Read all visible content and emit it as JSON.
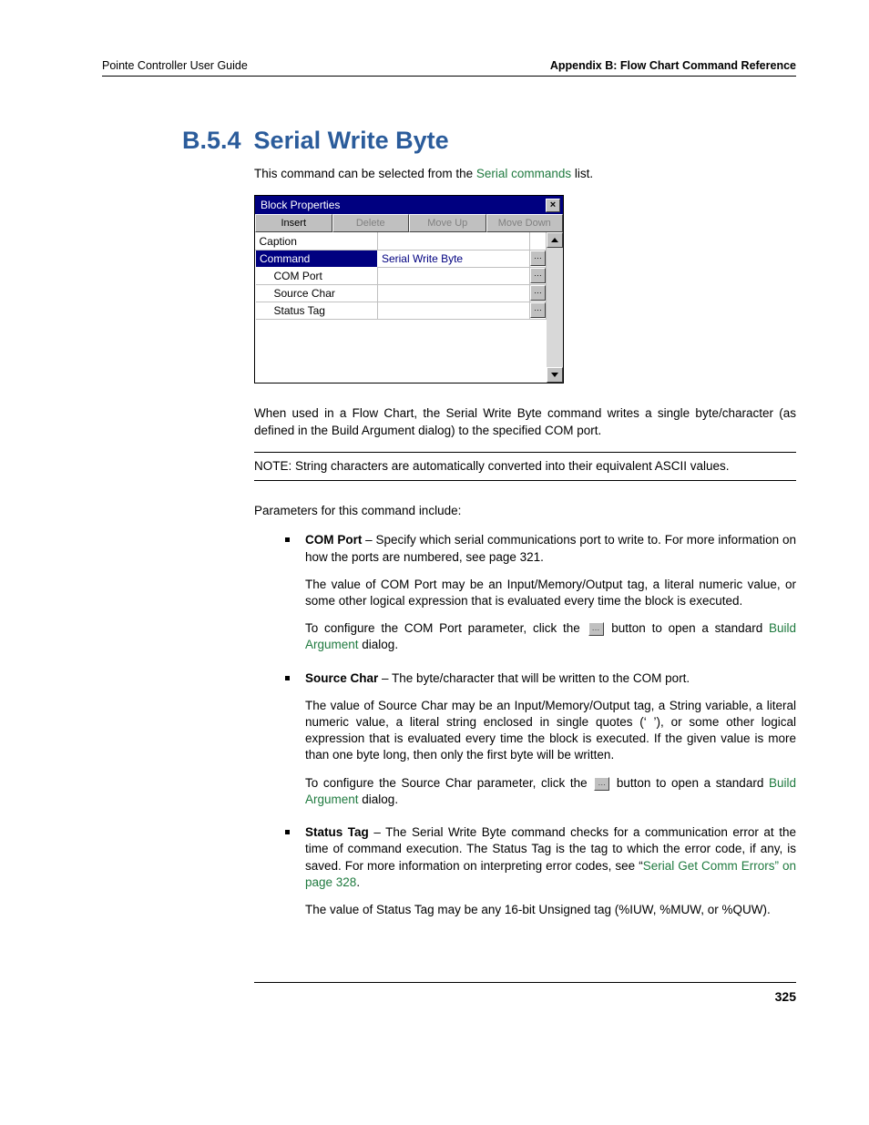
{
  "header": {
    "left": "Pointe Controller User Guide",
    "right": "Appendix B: Flow Chart Command Reference"
  },
  "section": {
    "number": "B.5.4",
    "title": "Serial Write Byte"
  },
  "intro": {
    "pre": "This command can be selected from the ",
    "link": "Serial commands",
    "post": " list."
  },
  "dialog": {
    "title": "Block Properties",
    "buttons": {
      "insert": "Insert",
      "delete": "Delete",
      "moveup": "Move Up",
      "movedown": "Move Down"
    },
    "rows": {
      "caption": "Caption",
      "command": "Command",
      "command_val": "Serial Write Byte",
      "comport": "COM Port",
      "sourcechar": "Source Char",
      "statustag": "Status Tag"
    },
    "ellipsis": "…"
  },
  "desc": "When used in a Flow Chart, the Serial Write Byte command writes a single byte/character (as defined in the Build Argument dialog) to the specified COM port.",
  "note": "NOTE: String characters are automatically converted into their equivalent ASCII values.",
  "params_intro": "Parameters for this command include:",
  "com": {
    "label": "COM Port",
    "desc": " – Specify which serial communications port to write to. For more information on how the ports are numbered, see page 321.",
    "p2": "The value of COM Port may be an Input/Memory/Output tag, a literal numeric value, or some other logical expression that is evaluated every time the block is executed.",
    "p3a": "To configure the COM Port parameter, click the ",
    "p3b": " button to open a standard ",
    "p3link": "Build Argument",
    "p3c": " dialog."
  },
  "src": {
    "label": "Source Char",
    "desc": " – The byte/character that will be written to the COM port.",
    "p2": "The value of Source Char may be an Input/Memory/Output tag, a String variable, a literal numeric value, a literal string enclosed in single quotes (‘ ’), or some other logical expression that is evaluated every time the block is executed. If the given value is more than one byte long, then only the first byte will be written.",
    "p3a": "To configure the Source Char parameter, click the ",
    "p3b": " button to open a standard ",
    "p3link": "Build Argument",
    "p3c": " dialog."
  },
  "stat": {
    "label": "Status Tag",
    "desc_a": " – The Serial Write Byte command checks for a communication error at the time of command execution. The Status Tag is the tag to which the error code, if any, is saved. For more information on interpreting error codes, see “",
    "desc_link": "Serial Get Comm Errors",
    "desc_b": "” on page 328",
    "desc_c": ".",
    "p2": "The value of Status Tag may be any 16-bit Unsigned tag (%IUW, %MUW, or %QUW)."
  },
  "page_number": "325"
}
